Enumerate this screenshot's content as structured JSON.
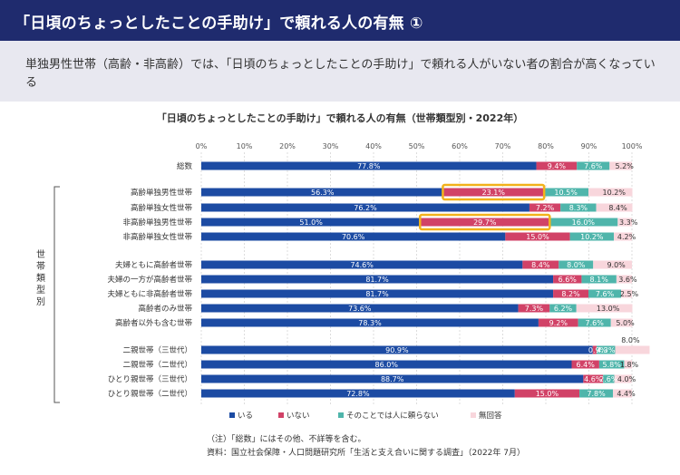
{
  "header": {
    "title": "「日頃のちょっとしたことの手助け」で頼れる人の有無 ①"
  },
  "lead": {
    "text": "単独男性世帯（高齢・非高齢）では、「日頃のちょっとしたことの手助け」で頼れる人がいない者の割合が高くなっている"
  },
  "notes": {
    "note": "（注）「総数」にはその他、不詳等を含む。",
    "source": "資料：国立社会保障・人口問題研究所「生活と支え合いに関する調査」（2022年 7月）"
  },
  "colors": {
    "iru": "#1c4ba3",
    "inai": "#d14267",
    "sonokoto": "#4fb5ab",
    "mukaito": "#f8d6dc",
    "highlight": "#f2b21b"
  },
  "chart_data": {
    "type": "bar",
    "orientation": "horizontal",
    "stacked": true,
    "title": "「日頃のちょっとしたことの手助け」で頼れる人の有無（世帯類型別・2022年）",
    "xlim": [
      0,
      100
    ],
    "xticks": [
      "0%",
      "10%",
      "20%",
      "30%",
      "40%",
      "50%",
      "60%",
      "70%",
      "80%",
      "90%",
      "100%"
    ],
    "group_label": "世帯類型別",
    "legend_position": "bottom",
    "categories": [
      "総数",
      "高齢単独男性世帯",
      "高齢単独女性世帯",
      "非高齢単独男性世帯",
      "非高齢単独女性世帯",
      "夫婦ともに高齢者世帯",
      "夫婦の一方が高齢者世帯",
      "夫婦ともに非高齢者世帯",
      "高齢者のみ世帯",
      "高齢者以外も含む世帯",
      "二親世帯（三世代）",
      "二親世帯（二世代）",
      "ひとり親世帯（三世代）",
      "ひとり親世帯（二世代）"
    ],
    "series": [
      {
        "name": "いる",
        "values": [
          77.8,
          56.3,
          76.2,
          51.0,
          70.6,
          74.6,
          81.7,
          81.7,
          73.6,
          78.3,
          90.9,
          86.0,
          88.7,
          72.8
        ],
        "labels": [
          "77.8%",
          "56.3%",
          "76.2%",
          "51.0%",
          "70.6%",
          "74.6%",
          "81.7%",
          "81.7%",
          "73.6%",
          "78.3%",
          "90.9%",
          "86.0%",
          "88.7%",
          "72.8%"
        ]
      },
      {
        "name": "いない",
        "values": [
          9.4,
          23.1,
          7.2,
          29.7,
          15.0,
          8.4,
          6.6,
          8.2,
          7.3,
          9.2,
          0.9,
          6.4,
          4.6,
          15.0
        ],
        "labels": [
          "9.4%",
          "23.1%",
          "7.2%",
          "29.7%",
          "15.0%",
          "8.4%",
          "6.6%",
          "8.2%",
          "7.3%",
          "9.2%",
          "0.9%",
          "6.4%",
          "4.6%",
          "15.0%"
        ]
      },
      {
        "name": "そのことでは人に頼らない",
        "values": [
          7.6,
          10.5,
          8.3,
          16.0,
          10.2,
          8.0,
          8.1,
          7.6,
          6.2,
          7.6,
          4.3,
          5.8,
          2.6,
          7.8
        ],
        "labels": [
          "7.6%",
          "10.5%",
          "8.3%",
          "16.0%",
          "10.2%",
          "8.0%",
          "8.1%",
          "7.6%",
          "6.2%",
          "7.6%",
          "4.3%",
          "5.8%",
          "2.6%",
          "7.8%"
        ]
      },
      {
        "name": "無回答",
        "values": [
          5.2,
          10.2,
          8.4,
          3.3,
          4.2,
          9.0,
          3.6,
          2.5,
          13.0,
          5.0,
          8.0,
          1.8,
          4.0,
          4.4
        ],
        "labels": [
          "5.2%",
          "10.2%",
          "8.4%",
          "3.3%",
          "4.2%",
          "9.0%",
          "3.6%",
          "2.5%",
          "13.0%",
          "5.0%",
          "8.0%",
          "1.8%",
          "4.0%",
          "4.4%"
        ]
      }
    ],
    "highlighted": [
      {
        "category": "高齢単独男性世帯",
        "series": "いない"
      },
      {
        "category": "非高齢単独男性世帯",
        "series": "いない"
      }
    ]
  }
}
